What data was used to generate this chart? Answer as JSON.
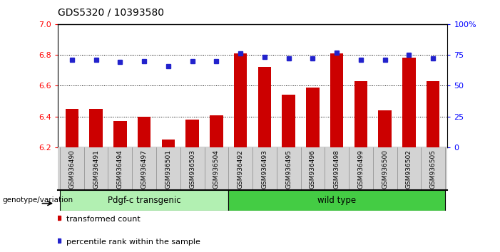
{
  "title": "GDS5320 / 10393580",
  "samples": [
    "GSM936490",
    "GSM936491",
    "GSM936494",
    "GSM936497",
    "GSM936501",
    "GSM936503",
    "GSM936504",
    "GSM936492",
    "GSM936493",
    "GSM936495",
    "GSM936496",
    "GSM936498",
    "GSM936499",
    "GSM936500",
    "GSM936502",
    "GSM936505"
  ],
  "bar_values": [
    6.45,
    6.45,
    6.37,
    6.4,
    6.25,
    6.38,
    6.41,
    6.81,
    6.72,
    6.54,
    6.59,
    6.81,
    6.63,
    6.44,
    6.78,
    6.63
  ],
  "dot_values": [
    71,
    71,
    69,
    70,
    66,
    70,
    70,
    76,
    73,
    72,
    72,
    77,
    71,
    71,
    75,
    72
  ],
  "bar_color": "#cc0000",
  "dot_color": "#2222cc",
  "ylim_left": [
    6.2,
    7.0
  ],
  "ylim_right": [
    0,
    100
  ],
  "yticks_left": [
    6.2,
    6.4,
    6.6,
    6.8,
    7.0
  ],
  "yticks_right": [
    0,
    25,
    50,
    75,
    100
  ],
  "ytick_labels_right": [
    "0",
    "25",
    "50",
    "75",
    "100%"
  ],
  "groups": [
    {
      "label": "Pdgf-c transgenic",
      "start": 0,
      "end": 7,
      "color": "#90ee90"
    },
    {
      "label": "wild type",
      "start": 7,
      "end": 16,
      "color": "#32cd32"
    }
  ],
  "genotype_label": "genotype/variation",
  "legend_bar_label": "transformed count",
  "legend_dot_label": "percentile rank within the sample",
  "plot_bg": "#ffffff",
  "tick_area_bg": "#d3d3d3",
  "bar_bottom": 6.2,
  "group_light_green": "#b2f0b2",
  "group_dark_green": "#44cc44"
}
